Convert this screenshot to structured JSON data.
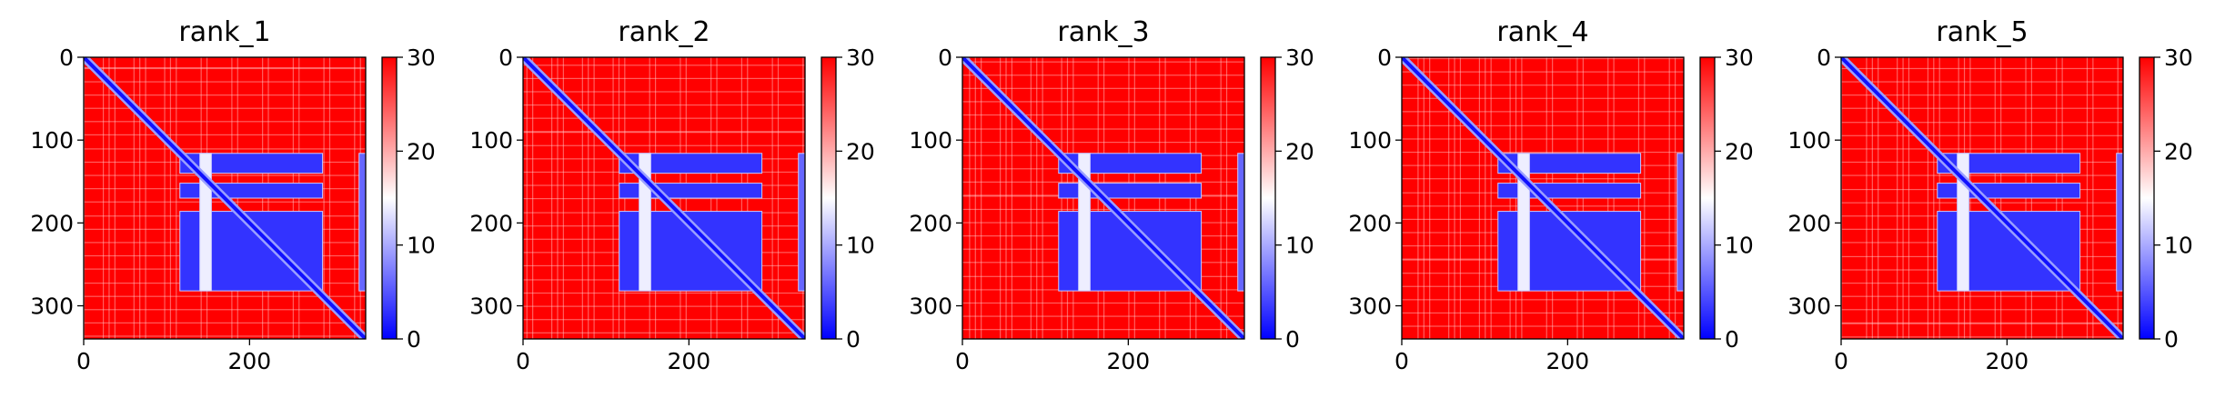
{
  "chart_data": [
    {
      "type": "heatmap",
      "title": "rank_1",
      "xlabel": "",
      "ylabel": "",
      "x_ticks": [
        "0",
        "200"
      ],
      "y_ticks": [
        "0",
        "100",
        "200",
        "300"
      ],
      "xlim": [
        0,
        340
      ],
      "ylim": [
        340,
        0
      ],
      "colorbar": {
        "min": 0,
        "max": 30,
        "ticks": [
          "0",
          "10",
          "20",
          "30"
        ],
        "colormap": "bwr"
      },
      "blocks": [
        {
          "rows": [
            116,
            140
          ],
          "cols": [
            116,
            288
          ],
          "value": 3
        },
        {
          "rows": [
            152,
            170
          ],
          "cols": [
            116,
            288
          ],
          "value": 3
        },
        {
          "rows": [
            186,
            282
          ],
          "cols": [
            116,
            288
          ],
          "value": 3
        },
        {
          "rows": [
            116,
            282
          ],
          "cols": [
            140,
            154
          ],
          "value": 14
        },
        {
          "rows": [
            116,
            282
          ],
          "cols": [
            332,
            340
          ],
          "value": 6
        }
      ],
      "diagonal_value": 1
    },
    {
      "type": "heatmap",
      "title": "rank_2",
      "xlabel": "",
      "ylabel": "",
      "x_ticks": [
        "0",
        "200"
      ],
      "y_ticks": [
        "0",
        "100",
        "200",
        "300"
      ],
      "xlim": [
        0,
        340
      ],
      "ylim": [
        340,
        0
      ],
      "colorbar": {
        "min": 0,
        "max": 30,
        "ticks": [
          "0",
          "10",
          "20",
          "30"
        ],
        "colormap": "bwr"
      },
      "blocks": [
        {
          "rows": [
            116,
            140
          ],
          "cols": [
            116,
            288
          ],
          "value": 3
        },
        {
          "rows": [
            152,
            170
          ],
          "cols": [
            116,
            288
          ],
          "value": 3
        },
        {
          "rows": [
            186,
            282
          ],
          "cols": [
            116,
            288
          ],
          "value": 3
        },
        {
          "rows": [
            116,
            282
          ],
          "cols": [
            140,
            154
          ],
          "value": 14
        },
        {
          "rows": [
            116,
            282
          ],
          "cols": [
            332,
            340
          ],
          "value": 6
        }
      ],
      "diagonal_value": 1
    },
    {
      "type": "heatmap",
      "title": "rank_3",
      "xlabel": "",
      "ylabel": "",
      "x_ticks": [
        "0",
        "200"
      ],
      "y_ticks": [
        "0",
        "100",
        "200",
        "300"
      ],
      "xlim": [
        0,
        340
      ],
      "ylim": [
        340,
        0
      ],
      "colorbar": {
        "min": 0,
        "max": 30,
        "ticks": [
          "0",
          "10",
          "20",
          "30"
        ],
        "colormap": "bwr"
      },
      "blocks": [
        {
          "rows": [
            116,
            140
          ],
          "cols": [
            116,
            288
          ],
          "value": 3
        },
        {
          "rows": [
            152,
            170
          ],
          "cols": [
            116,
            288
          ],
          "value": 3
        },
        {
          "rows": [
            186,
            282
          ],
          "cols": [
            116,
            288
          ],
          "value": 3
        },
        {
          "rows": [
            116,
            282
          ],
          "cols": [
            140,
            154
          ],
          "value": 14
        },
        {
          "rows": [
            116,
            282
          ],
          "cols": [
            332,
            340
          ],
          "value": 6
        }
      ],
      "diagonal_value": 1
    },
    {
      "type": "heatmap",
      "title": "rank_4",
      "xlabel": "",
      "ylabel": "",
      "x_ticks": [
        "0",
        "200"
      ],
      "y_ticks": [
        "0",
        "100",
        "200",
        "300"
      ],
      "xlim": [
        0,
        340
      ],
      "ylim": [
        340,
        0
      ],
      "colorbar": {
        "min": 0,
        "max": 30,
        "ticks": [
          "0",
          "10",
          "20",
          "30"
        ],
        "colormap": "bwr"
      },
      "blocks": [
        {
          "rows": [
            116,
            140
          ],
          "cols": [
            116,
            288
          ],
          "value": 3
        },
        {
          "rows": [
            152,
            170
          ],
          "cols": [
            116,
            288
          ],
          "value": 3
        },
        {
          "rows": [
            186,
            282
          ],
          "cols": [
            116,
            288
          ],
          "value": 3
        },
        {
          "rows": [
            116,
            282
          ],
          "cols": [
            140,
            154
          ],
          "value": 14
        },
        {
          "rows": [
            116,
            282
          ],
          "cols": [
            332,
            340
          ],
          "value": 6
        }
      ],
      "diagonal_value": 1
    },
    {
      "type": "heatmap",
      "title": "rank_5",
      "xlabel": "",
      "ylabel": "",
      "x_ticks": [
        "0",
        "200"
      ],
      "y_ticks": [
        "0",
        "100",
        "200",
        "300"
      ],
      "xlim": [
        0,
        340
      ],
      "ylim": [
        340,
        0
      ],
      "colorbar": {
        "min": 0,
        "max": 30,
        "ticks": [
          "0",
          "10",
          "20",
          "30"
        ],
        "colormap": "bwr"
      },
      "blocks": [
        {
          "rows": [
            116,
            140
          ],
          "cols": [
            116,
            288
          ],
          "value": 3
        },
        {
          "rows": [
            152,
            170
          ],
          "cols": [
            116,
            288
          ],
          "value": 3
        },
        {
          "rows": [
            186,
            282
          ],
          "cols": [
            116,
            288
          ],
          "value": 3
        },
        {
          "rows": [
            116,
            282
          ],
          "cols": [
            140,
            154
          ],
          "value": 14
        },
        {
          "rows": [
            116,
            282
          ],
          "cols": [
            332,
            340
          ],
          "value": 6
        }
      ],
      "diagonal_value": 1
    }
  ],
  "colors": {
    "high": "#ff0000",
    "mid": "#ffffff",
    "low": "#0000ff",
    "axis": "#000000"
  }
}
